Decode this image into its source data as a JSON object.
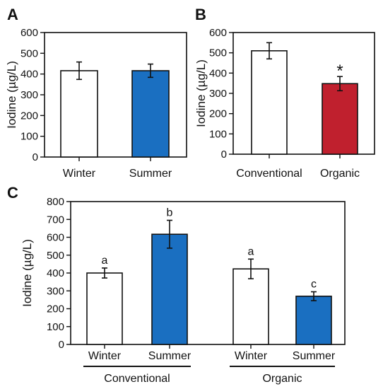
{
  "chart_data": [
    {
      "panel": "A",
      "type": "bar",
      "ylabel": "Iodine (µg/L)",
      "ylim": [
        0,
        600
      ],
      "yticks": [
        0,
        100,
        200,
        300,
        400,
        500,
        600
      ],
      "categories": [
        "Winter",
        "Summer"
      ],
      "values": [
        416,
        416
      ],
      "errors": [
        42,
        32
      ],
      "colors": [
        "#ffffff",
        "#1a6fc1"
      ],
      "annotations": [
        "",
        ""
      ]
    },
    {
      "panel": "B",
      "type": "bar",
      "ylabel": "Iodine (µg/L)",
      "ylim": [
        0,
        600
      ],
      "yticks": [
        0,
        100,
        200,
        300,
        400,
        500,
        600
      ],
      "categories": [
        "Conventional",
        "Organic"
      ],
      "values": [
        510,
        348
      ],
      "errors": [
        40,
        35
      ],
      "colors": [
        "#ffffff",
        "#c0202e"
      ],
      "annotations": [
        "",
        "*"
      ]
    },
    {
      "panel": "C",
      "type": "bar",
      "ylabel": "Iodine (µg/L)",
      "ylim": [
        0,
        800
      ],
      "yticks": [
        0,
        100,
        200,
        300,
        400,
        500,
        600,
        700,
        800
      ],
      "categories": [
        "Winter",
        "Summer",
        "Winter",
        "Summer"
      ],
      "values": [
        400,
        617,
        423,
        270
      ],
      "errors": [
        28,
        78,
        55,
        25
      ],
      "colors": [
        "#ffffff",
        "#1a6fc1",
        "#ffffff",
        "#1a6fc1"
      ],
      "annotations": [
        "a",
        "b",
        "a",
        "c"
      ],
      "groups": [
        {
          "label": "Conventional",
          "members": [
            0,
            1
          ]
        },
        {
          "label": "Organic",
          "members": [
            2,
            3
          ]
        }
      ]
    }
  ]
}
